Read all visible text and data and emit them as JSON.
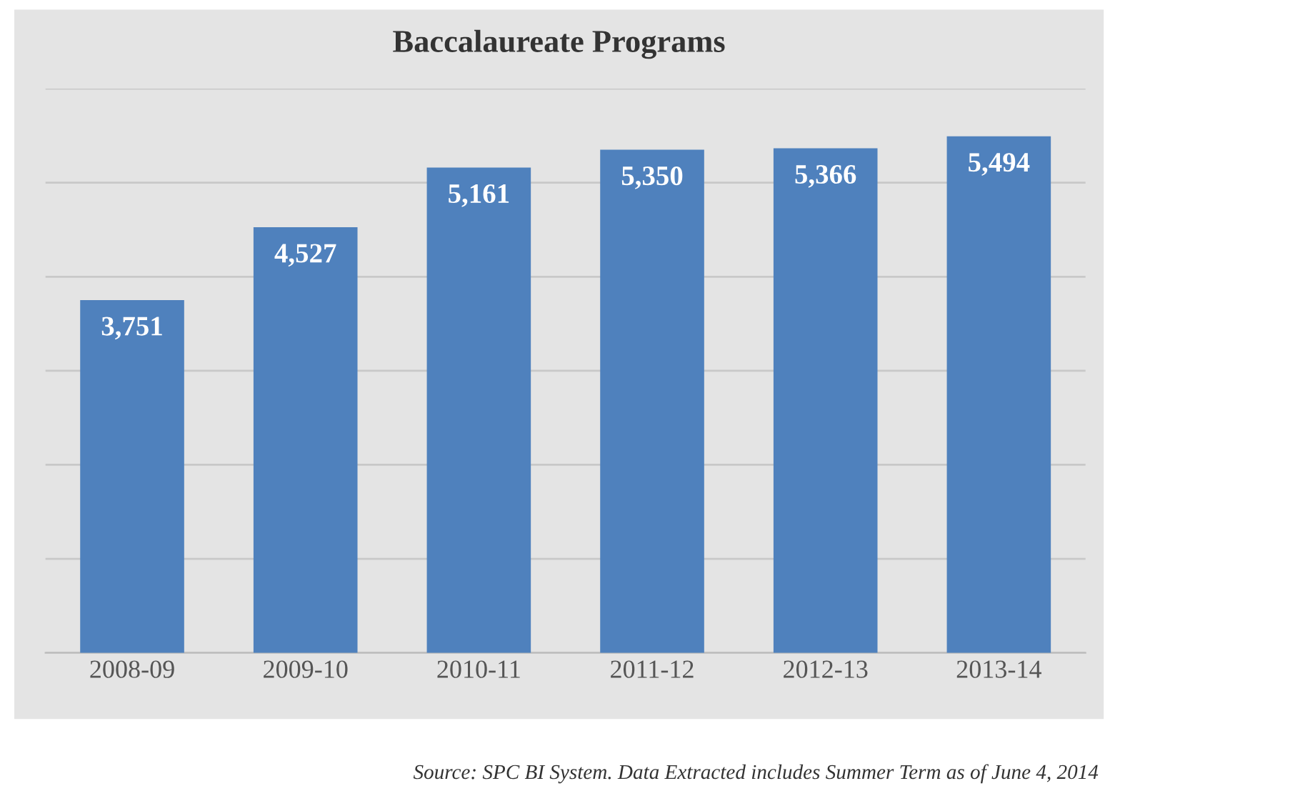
{
  "chart_data": {
    "type": "bar",
    "title": "Baccalaureate Programs",
    "categories": [
      "2008-09",
      "2009-10",
      "2010-11",
      "2011-12",
      "2012-13",
      "2013-14"
    ],
    "values": [
      3751,
      4527,
      5161,
      5350,
      5366,
      5494
    ],
    "value_labels": [
      "3,751",
      "4,527",
      "5,161",
      "5,350",
      "5,366",
      "5,494"
    ],
    "color": "#4f81bd",
    "ylim": [
      0,
      6000
    ],
    "yticks": [
      {
        "value": 0,
        "label": null
      },
      {
        "value": 1000,
        "label": null
      },
      {
        "value": 2000,
        "label": null
      },
      {
        "value": 3000,
        "label": null
      },
      {
        "value": 4000,
        "label": null
      },
      {
        "value": 5000,
        "label": null
      },
      {
        "value": 6000,
        "label": null
      }
    ],
    "grid": "y",
    "annotations": [
      "Source: SPC BI System. Data Extracted includes Summer Term as of June 4, 2014"
    ]
  }
}
